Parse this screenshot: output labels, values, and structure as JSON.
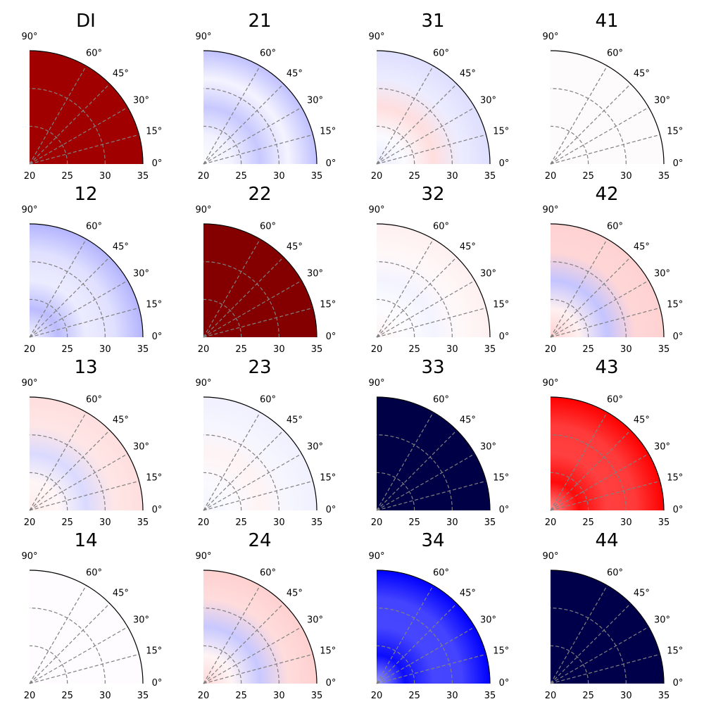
{
  "chart_data": {
    "type": "heatmap",
    "layout": "4x4 grid of quarter-polar panels",
    "colormap": "seismic (blue = negative, white = zero, red = positive)",
    "radial_ticks": [
      "20",
      "25",
      "30",
      "35"
    ],
    "angular_ticks": [
      "0°",
      "15°",
      "30°",
      "45°",
      "60°",
      "90°"
    ],
    "rlim": [
      20,
      35
    ],
    "thetalim_deg": [
      0,
      90
    ],
    "grid": true,
    "panels": [
      {
        "title": "DI",
        "fill": "uniform",
        "color": "#a00000"
      },
      {
        "title": "21",
        "fill": "radial",
        "stops": [
          "#fcfcff",
          "#f2f2ff",
          "#c8c8ff",
          "#f4f4ff",
          "#c0c0ff"
        ]
      },
      {
        "title": "31",
        "fill": "radial",
        "stops": [
          "#ececff",
          "#fafaff",
          "#ffdede",
          "#ececff",
          "#dedeff"
        ]
      },
      {
        "title": "41",
        "fill": "uniform",
        "color": "#fdfbfc"
      },
      {
        "title": "12",
        "fill": "radial",
        "stops": [
          "#f4f4ff",
          "#bcbcff",
          "#ececff",
          "#e0e0ff",
          "#b4b4ff"
        ]
      },
      {
        "title": "22",
        "fill": "uniform",
        "color": "#840000"
      },
      {
        "title": "32",
        "fill": "radial",
        "stops": [
          "#fff4f4",
          "#fcfcff",
          "#f4f4ff",
          "#fff8f8",
          "#fff0f0"
        ]
      },
      {
        "title": "42",
        "fill": "radial",
        "stops": [
          "#ffd0d0",
          "#fff0f0",
          "#c4c4ff",
          "#ffd6d6",
          "#ffd2d2"
        ]
      },
      {
        "title": "13",
        "fill": "radial",
        "stops": [
          "#ffecec",
          "#fff6f6",
          "#dadaff",
          "#ffe6e6",
          "#ffdede"
        ]
      },
      {
        "title": "23",
        "fill": "radial",
        "stops": [
          "#f4f4ff",
          "#fafaff",
          "#fff4f4",
          "#f6f6ff",
          "#f0f0ff"
        ]
      },
      {
        "title": "33",
        "fill": "uniform",
        "color": "#000046"
      },
      {
        "title": "43",
        "fill": "radial",
        "stops": [
          "#ff9090",
          "#ff0a0a",
          "#ff4040",
          "#ff3a3a",
          "#ff0000"
        ]
      },
      {
        "title": "14",
        "fill": "uniform",
        "color": "#fefcfe"
      },
      {
        "title": "24",
        "fill": "radial",
        "stops": [
          "#ffd6d6",
          "#fff4f4",
          "#c8c8ff",
          "#ffdcdc",
          "#ffd0d0"
        ]
      },
      {
        "title": "34",
        "fill": "radial",
        "stops": [
          "#a0a0ff",
          "#0c0cff",
          "#4646ff",
          "#4444ff",
          "#0000ff"
        ]
      },
      {
        "title": "44",
        "fill": "uniform",
        "color": "#00004a"
      }
    ]
  }
}
